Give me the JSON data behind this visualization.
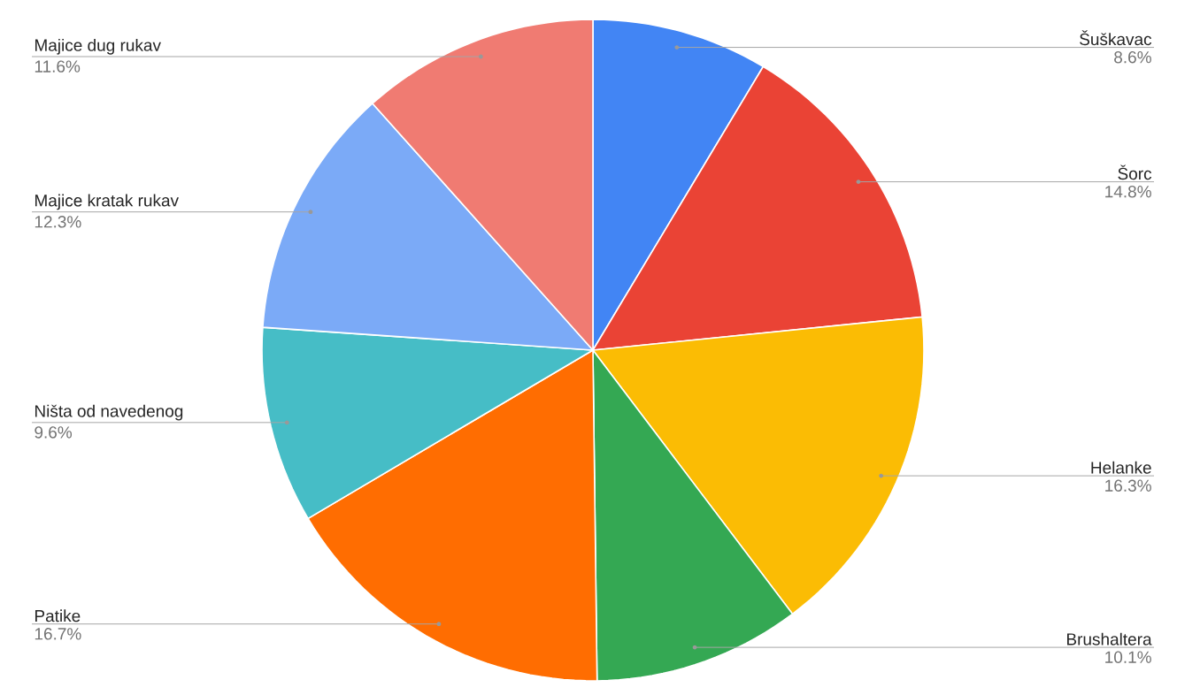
{
  "chart_data": {
    "type": "pie",
    "categories": [
      "Šuškavac",
      "Šorc",
      "Helanke",
      "Brushaltera",
      "Patike",
      "Ništa od navedenog",
      "Majice kratak rukav",
      "Majice dug rukav"
    ],
    "values": [
      8.6,
      14.8,
      16.3,
      10.1,
      16.7,
      9.6,
      12.3,
      11.6
    ],
    "value_labels": [
      "8.6%",
      "14.8%",
      "16.3%",
      "10.1%",
      "16.7%",
      "9.6%",
      "12.3%",
      "11.6%"
    ],
    "colors": [
      "#4285f4",
      "#ea4335",
      "#fbbc04",
      "#34a853",
      "#ff6d01",
      "#46bdc6",
      "#7baaf7",
      "#f07b72"
    ]
  }
}
